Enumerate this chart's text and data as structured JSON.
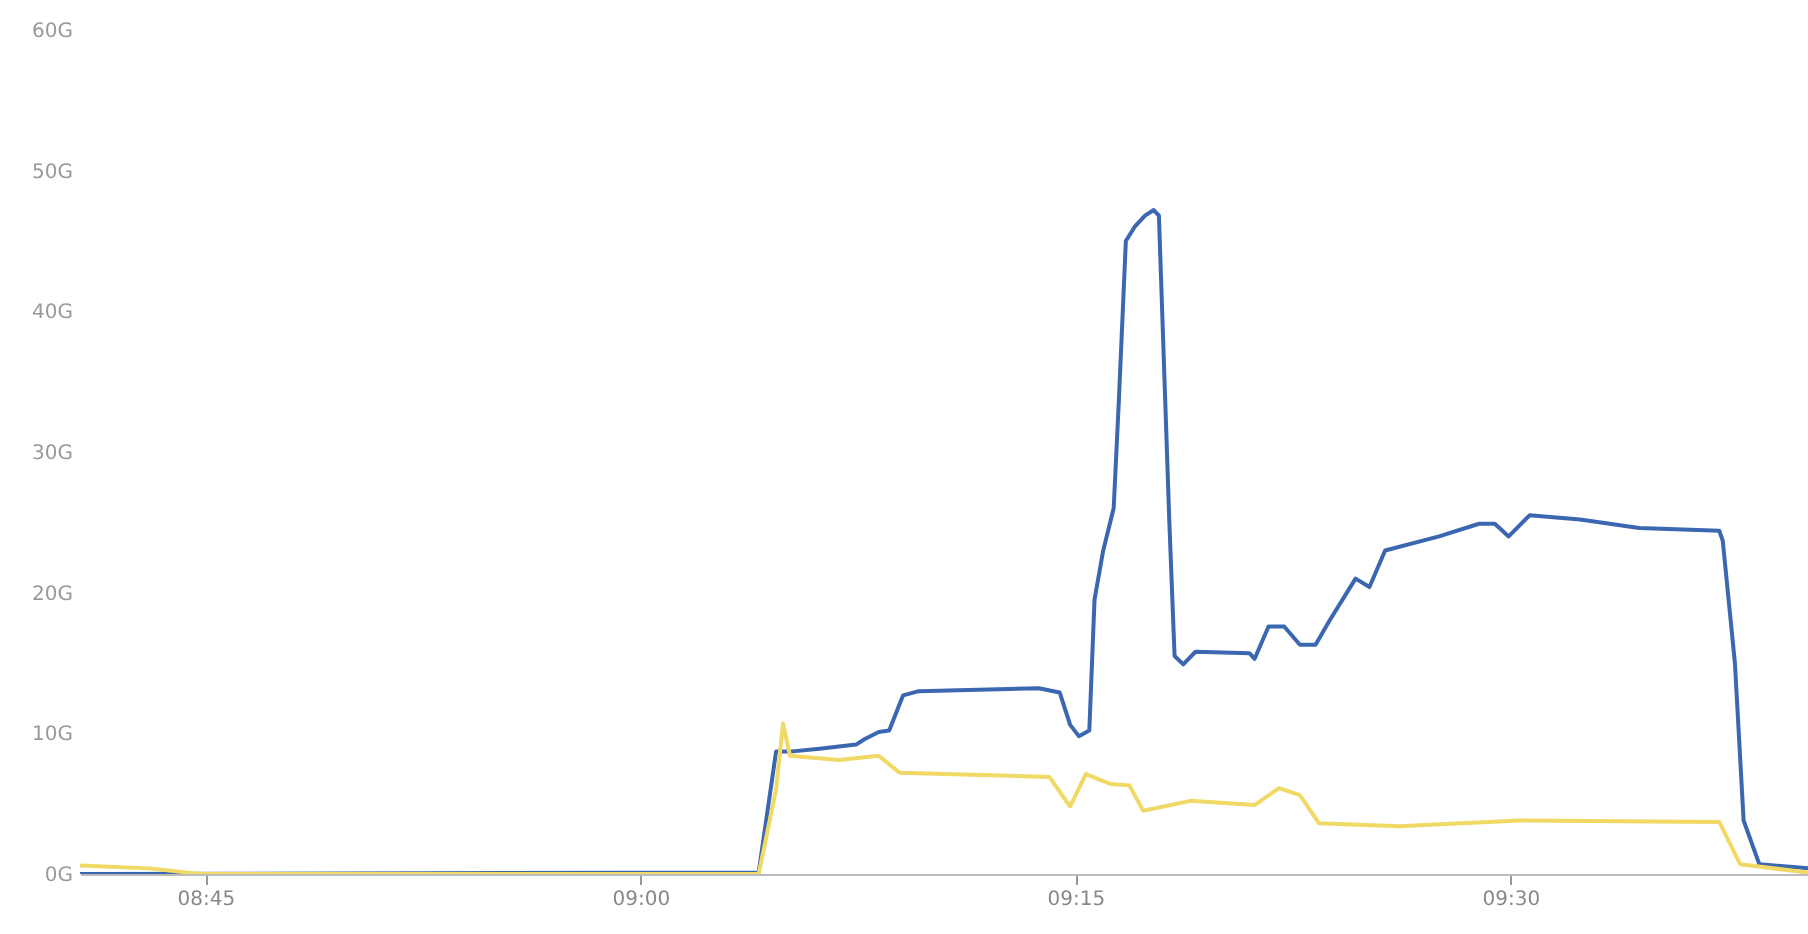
{
  "chart_data": {
    "type": "line",
    "xlim": [
      8.678,
      9.671
    ],
    "xticks": [
      {
        "value": 8.75,
        "label": "08:45"
      },
      {
        "value": 9.0,
        "label": "09:00"
      },
      {
        "value": 9.25,
        "label": "09:15"
      },
      {
        "value": 9.5,
        "label": "09:30"
      }
    ],
    "ylim": [
      0,
      60
    ],
    "yticks": [
      {
        "value": 0,
        "label": "0G"
      },
      {
        "value": 10,
        "label": "10G"
      },
      {
        "value": 20,
        "label": "20G"
      },
      {
        "value": 30,
        "label": "30G"
      },
      {
        "value": 40,
        "label": "40G"
      },
      {
        "value": 50,
        "label": "50G"
      },
      {
        "value": 60,
        "label": "60G"
      }
    ],
    "marker": "none",
    "line_style": "solid",
    "series": [
      {
        "color": "#3b66b0",
        "x": [
          8.678,
          9.068,
          9.078,
          9.086,
          9.103,
          9.124,
          9.129,
          9.137,
          9.143,
          9.151,
          9.16,
          9.229,
          9.241,
          9.247,
          9.252,
          9.258,
          9.261,
          9.266,
          9.272,
          9.275,
          9.279,
          9.284,
          9.29,
          9.295,
          9.298,
          9.304,
          9.307,
          9.312,
          9.319,
          9.35,
          9.353,
          9.361,
          9.37,
          9.379,
          9.388,
          9.396,
          9.411,
          9.419,
          9.428,
          9.459,
          9.482,
          9.491,
          9.499,
          9.511,
          9.54,
          9.574,
          9.62,
          9.622,
          9.629,
          9.634,
          9.643,
          9.671
        ],
        "values": [
          0,
          0.1,
          8.7,
          8.7,
          8.9,
          9.2,
          9.6,
          10.1,
          10.2,
          12.7,
          13,
          13.2,
          12.9,
          10.6,
          9.8,
          10.2,
          19.5,
          23,
          26,
          33.7,
          45,
          46,
          46.8,
          47.2,
          46.8,
          25,
          15.5,
          14.9,
          15.8,
          15.7,
          15.3,
          17.6,
          17.6,
          16.3,
          16.3,
          18,
          21,
          20.4,
          23,
          24,
          24.9,
          24.9,
          24,
          25.5,
          25.2,
          24.6,
          24.4,
          23.7,
          15,
          3.8,
          0.7,
          0.4
        ]
      },
      {
        "color": "#f0d964",
        "x": [
          8.678,
          8.718,
          8.747,
          9.068,
          9.078,
          9.082,
          9.086,
          9.114,
          9.137,
          9.149,
          9.235,
          9.247,
          9.256,
          9.27,
          9.281,
          9.289,
          9.316,
          9.353,
          9.367,
          9.379,
          9.39,
          9.436,
          9.505,
          9.62,
          9.632,
          9.671
        ],
        "values": [
          0.6,
          0.4,
          0,
          0,
          6,
          10.7,
          8.4,
          8.1,
          8.4,
          7.2,
          6.9,
          4.8,
          7.1,
          6.4,
          6.3,
          4.5,
          5.2,
          4.9,
          6.1,
          5.6,
          3.6,
          3.4,
          3.8,
          3.7,
          0.7,
          0.1
        ]
      }
    ]
  }
}
